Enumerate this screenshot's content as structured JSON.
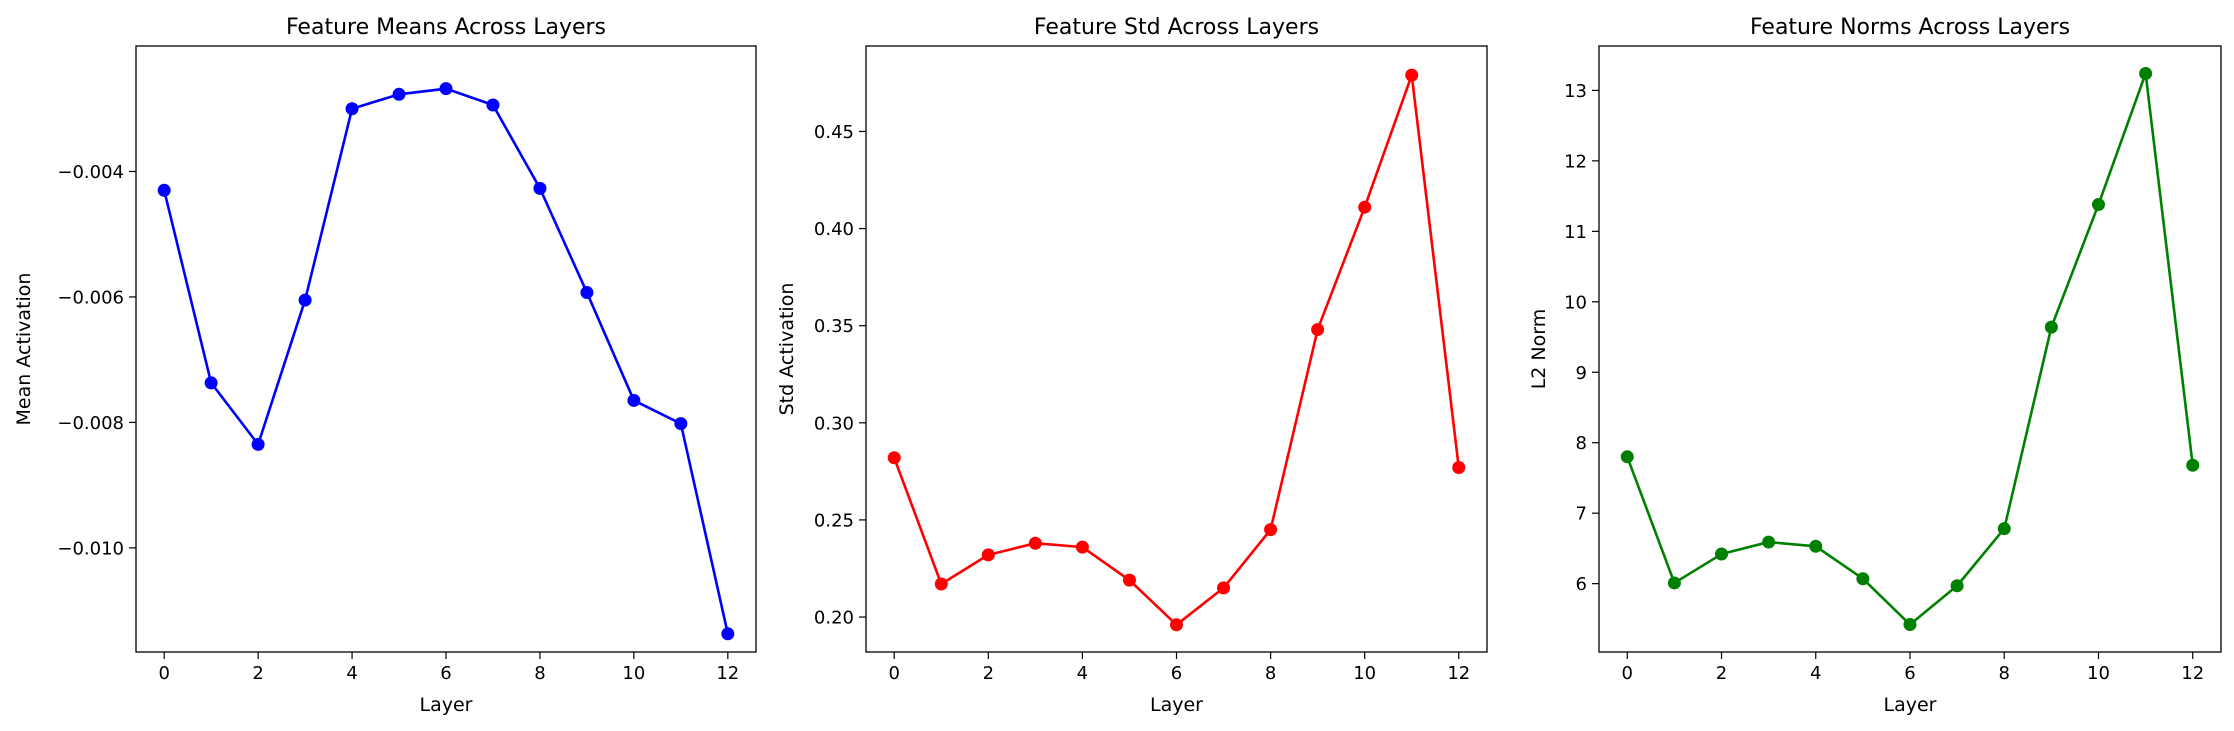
{
  "chart_data": [
    {
      "type": "line",
      "title": "Feature Means Across Layers",
      "xlabel": "Layer",
      "ylabel": "Mean Activation",
      "color": "#0000ff",
      "marker": "circle",
      "x": [
        0,
        1,
        2,
        3,
        4,
        5,
        6,
        7,
        8,
        9,
        10,
        11,
        12
      ],
      "y": [
        -0.0043,
        -0.00737,
        -0.00835,
        -0.00605,
        -0.003,
        -0.00277,
        -0.00268,
        -0.00294,
        -0.00427,
        -0.00593,
        -0.00765,
        -0.00802,
        -0.01137
      ],
      "xlim": [
        -0.6,
        12.6
      ],
      "ylim": [
        -0.01166,
        -0.002
      ],
      "xticks": [
        0,
        2,
        4,
        6,
        8,
        10,
        12
      ],
      "xtick_labels": [
        "0",
        "2",
        "4",
        "6",
        "8",
        "10",
        "12"
      ],
      "yticks": [
        -0.01,
        -0.008,
        -0.006,
        -0.004
      ],
      "ytick_labels": [
        "−0.010",
        "−0.008",
        "−0.006",
        "−0.004"
      ],
      "grid": false
    },
    {
      "type": "line",
      "title": "Feature Std Across Layers",
      "xlabel": "Layer",
      "ylabel": "Std Activation",
      "color": "#ff0000",
      "marker": "circle",
      "x": [
        0,
        1,
        2,
        3,
        4,
        5,
        6,
        7,
        8,
        9,
        10,
        11,
        12
      ],
      "y": [
        0.282,
        0.217,
        0.232,
        0.238,
        0.236,
        0.219,
        0.196,
        0.215,
        0.245,
        0.348,
        0.411,
        0.479,
        0.277
      ],
      "xlim": [
        -0.6,
        12.6
      ],
      "ylim": [
        0.182,
        0.494
      ],
      "xticks": [
        0,
        2,
        4,
        6,
        8,
        10,
        12
      ],
      "xtick_labels": [
        "0",
        "2",
        "4",
        "6",
        "8",
        "10",
        "12"
      ],
      "yticks": [
        0.2,
        0.25,
        0.3,
        0.35,
        0.4,
        0.45
      ],
      "ytick_labels": [
        "0.20",
        "0.25",
        "0.30",
        "0.35",
        "0.40",
        "0.45"
      ],
      "grid": false
    },
    {
      "type": "line",
      "title": "Feature Norms Across Layers",
      "xlabel": "Layer",
      "ylabel": "L2 Norm",
      "color": "#008000",
      "marker": "circle",
      "x": [
        0,
        1,
        2,
        3,
        4,
        5,
        6,
        7,
        8,
        9,
        10,
        11,
        12
      ],
      "y": [
        7.8,
        6.01,
        6.42,
        6.59,
        6.53,
        6.07,
        5.42,
        5.97,
        6.78,
        9.64,
        11.38,
        13.24,
        7.68
      ],
      "xlim": [
        -0.6,
        12.6
      ],
      "ylim": [
        5.03,
        13.63
      ],
      "xticks": [
        0,
        2,
        4,
        6,
        8,
        10,
        12
      ],
      "xtick_labels": [
        "0",
        "2",
        "4",
        "6",
        "8",
        "10",
        "12"
      ],
      "yticks": [
        6,
        7,
        8,
        9,
        10,
        11,
        12,
        13
      ],
      "ytick_labels": [
        "6",
        "7",
        "8",
        "9",
        "10",
        "11",
        "12",
        "13"
      ],
      "grid": false
    }
  ]
}
